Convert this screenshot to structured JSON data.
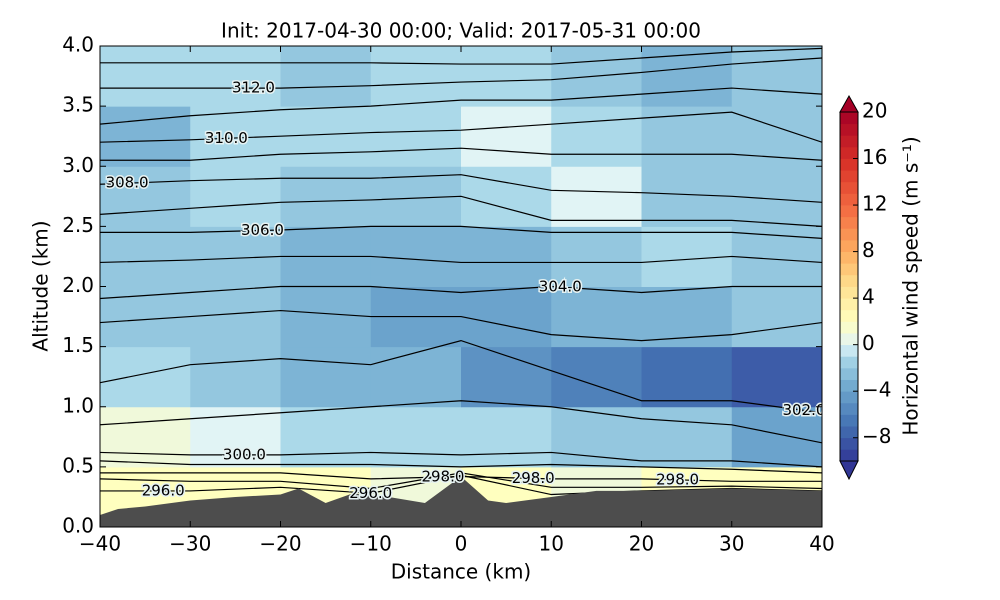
{
  "chart_data": {
    "type": "contour",
    "title": "Init: 2017-04-30 00:00; Valid: 2017-05-31 00:00",
    "x_label": "Distance (km)",
    "y_label": "Altitude (km)",
    "xlim": [
      -40,
      40
    ],
    "ylim": [
      0,
      4
    ],
    "xticks": [
      {
        "value": -40,
        "label": "−40"
      },
      {
        "value": -30,
        "label": "−30"
      },
      {
        "value": -20,
        "label": "−20"
      },
      {
        "value": -10,
        "label": "−10"
      },
      0,
      10,
      20,
      30,
      40
    ],
    "yticks": [
      {
        "value": 0,
        "label": "0.0"
      },
      {
        "value": 0.5,
        "label": "0.5"
      },
      {
        "value": 1,
        "label": "1.0"
      },
      {
        "value": 1.5,
        "label": "1.5"
      },
      {
        "value": 2,
        "label": "2.0"
      },
      {
        "value": 2.5,
        "label": "2.5"
      },
      {
        "value": 3,
        "label": "3.0"
      },
      {
        "value": 3.5,
        "label": "3.5"
      },
      {
        "value": 4,
        "label": "4.0"
      }
    ],
    "colorbar_label": "Horizontal wind speed (m s⁻¹)",
    "clim": [
      -10,
      20
    ],
    "cticks": [
      {
        "value": -8,
        "label": "−8"
      },
      {
        "value": -4,
        "label": "−4"
      },
      0,
      4,
      8,
      12,
      16,
      20
    ],
    "field": {
      "x": [
        -35,
        -25,
        -15,
        -5,
        5,
        15,
        25,
        35
      ],
      "y": [
        0.25,
        0.75,
        1.25,
        1.75,
        2.25,
        2.75,
        3.25,
        3.75
      ],
      "values": [
        [
          2,
          2,
          2,
          1,
          2,
          1,
          2,
          2
        ],
        [
          1,
          0,
          -1,
          -1,
          -1,
          -2,
          -2,
          -4
        ],
        [
          -1,
          -2,
          -3,
          -3,
          -5,
          -6,
          -7,
          -8
        ],
        [
          -2,
          -2,
          -3,
          -4,
          -4,
          -3,
          -3,
          -2
        ],
        [
          -2,
          -2,
          -3,
          -3,
          -3,
          -2,
          -1,
          -2
        ],
        [
          -2,
          -1,
          -2,
          -2,
          -1,
          0,
          -2,
          -2
        ],
        [
          -3,
          -1,
          -1,
          -1,
          0,
          -1,
          -2,
          -2
        ],
        [
          -1,
          -1,
          -2,
          -1,
          -1,
          -2,
          -3,
          -2
        ]
      ]
    },
    "contour_x": [
      -40,
      -30,
      -20,
      -10,
      0,
      10,
      20,
      30,
      40
    ],
    "contours": [
      {
        "level": 313,
        "values": [
          3.86,
          3.86,
          3.86,
          3.86,
          3.85,
          3.85,
          3.9,
          3.95,
          3.98
        ]
      },
      {
        "level": 312,
        "label": "312.0",
        "values": [
          3.65,
          3.65,
          3.65,
          3.67,
          3.7,
          3.72,
          3.78,
          3.85,
          3.9
        ]
      },
      {
        "level": 311,
        "values": [
          3.35,
          3.42,
          3.47,
          3.5,
          3.55,
          3.55,
          3.6,
          3.65,
          3.6
        ]
      },
      {
        "level": 310,
        "label": "310.0",
        "values": [
          3.2,
          3.22,
          3.25,
          3.28,
          3.3,
          3.35,
          3.4,
          3.45,
          3.2
        ]
      },
      {
        "level": 309,
        "values": [
          3.05,
          3.05,
          3.1,
          3.12,
          3.15,
          3.1,
          3.1,
          3.1,
          3.05
        ]
      },
      {
        "level": 308,
        "label": "308.0",
        "values": [
          2.85,
          2.88,
          2.9,
          2.9,
          2.93,
          2.8,
          2.78,
          2.75,
          2.7
        ]
      },
      {
        "level": 307,
        "values": [
          2.6,
          2.65,
          2.7,
          2.72,
          2.75,
          2.55,
          2.55,
          2.55,
          2.5
        ]
      },
      {
        "level": 306,
        "label": "306.0",
        "values": [
          2.45,
          2.45,
          2.47,
          2.5,
          2.5,
          2.45,
          2.45,
          2.45,
          2.4
        ]
      },
      {
        "level": 305,
        "values": [
          2.2,
          2.22,
          2.25,
          2.25,
          2.2,
          2.2,
          2.2,
          2.25,
          2.2
        ]
      },
      {
        "level": 304,
        "label": "304.0",
        "values": [
          1.9,
          1.95,
          2.0,
          2.0,
          1.95,
          2.0,
          1.95,
          2.0,
          2.0
        ]
      },
      {
        "level": 303,
        "values": [
          1.7,
          1.75,
          1.8,
          1.75,
          1.75,
          1.6,
          1.55,
          1.6,
          1.7
        ]
      },
      {
        "level": 302,
        "label": "302.0",
        "values": [
          1.2,
          1.35,
          1.4,
          1.35,
          1.55,
          1.3,
          1.05,
          1.05,
          0.95
        ]
      },
      {
        "level": 301,
        "values": [
          0.85,
          0.9,
          0.95,
          1.0,
          1.05,
          1.0,
          0.9,
          0.85,
          0.7
        ]
      },
      {
        "level": 300,
        "label": "300.0",
        "values": [
          0.62,
          0.6,
          0.6,
          0.62,
          0.6,
          0.62,
          0.55,
          0.55,
          0.5
        ]
      },
      {
        "level": 299,
        "values": [
          0.55,
          0.52,
          0.52,
          0.52,
          0.5,
          0.52,
          0.5,
          0.48,
          0.45
        ]
      },
      {
        "level": 298,
        "label": "298.0",
        "values": [
          0.45,
          0.45,
          0.45,
          0.4,
          0.42,
          0.4,
          0.4,
          0.38,
          0.38
        ]
      },
      {
        "level": 297,
        "values": [
          0.4,
          0.38,
          0.38,
          0.32,
          0.45,
          0.33,
          0.33,
          0.34,
          0.32
        ]
      },
      {
        "level": 296,
        "label": "296.0",
        "values": [
          0.3,
          0.3,
          0.33,
          0.28,
          0.43,
          0.27,
          0.3,
          0.32,
          0.3
        ]
      }
    ],
    "terrain": {
      "x": [
        -40,
        -38,
        -35,
        -30,
        -25,
        -20,
        -18,
        -15,
        -12,
        -8,
        -4,
        0,
        3,
        5,
        10,
        15,
        20,
        30,
        40
      ],
      "values": [
        0.1,
        0.15,
        0.17,
        0.22,
        0.25,
        0.27,
        0.32,
        0.2,
        0.28,
        0.25,
        0.2,
        0.42,
        0.22,
        0.2,
        0.25,
        0.3,
        0.3,
        0.32,
        0.3
      ]
    },
    "terrain_color": "#4d4d4d"
  }
}
